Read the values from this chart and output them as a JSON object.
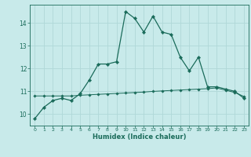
{
  "xlabel": "Humidex (Indice chaleur)",
  "background_color": "#c8eaea",
  "grid_color": "#b0d8d8",
  "line_color": "#1a6b5a",
  "xlim": [
    -0.5,
    23.5
  ],
  "ylim": [
    9.5,
    14.8
  ],
  "yticks": [
    10,
    11,
    12,
    13,
    14
  ],
  "xticks": [
    0,
    1,
    2,
    3,
    4,
    5,
    6,
    7,
    8,
    9,
    10,
    11,
    12,
    13,
    14,
    15,
    16,
    17,
    18,
    19,
    20,
    21,
    22,
    23
  ],
  "line1_x": [
    0,
    1,
    2,
    3,
    4,
    5,
    6,
    7,
    8,
    9,
    10,
    11,
    12,
    13,
    14,
    15,
    16,
    17,
    18,
    19,
    20,
    21,
    22,
    23
  ],
  "line1_y": [
    9.8,
    10.3,
    10.6,
    10.7,
    10.6,
    10.9,
    11.5,
    12.2,
    12.2,
    12.3,
    14.5,
    14.2,
    13.6,
    14.3,
    13.6,
    13.5,
    12.5,
    11.9,
    12.5,
    11.2,
    11.2,
    11.1,
    11.0,
    10.7
  ],
  "line2_x": [
    0,
    1,
    2,
    3,
    4,
    5,
    6,
    7,
    8,
    9,
    10,
    11,
    12,
    13,
    14,
    15,
    16,
    17,
    18,
    19,
    20,
    21,
    22,
    23
  ],
  "line2_y": [
    10.8,
    10.8,
    10.8,
    10.8,
    10.8,
    10.83,
    10.85,
    10.87,
    10.89,
    10.91,
    10.93,
    10.95,
    10.97,
    11.0,
    11.02,
    11.04,
    11.06,
    11.08,
    11.1,
    11.12,
    11.15,
    11.05,
    10.95,
    10.78
  ]
}
